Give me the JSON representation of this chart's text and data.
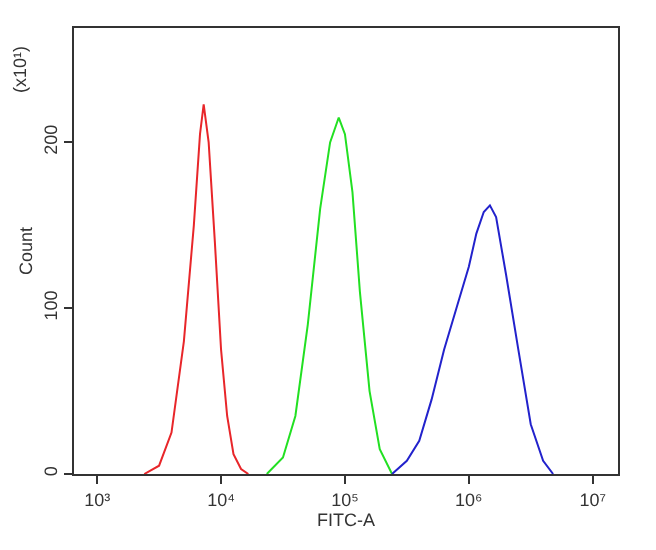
{
  "chart_data": {
    "type": "line",
    "xlabel": "FITC-A",
    "ylabel": "Count",
    "annotations": [
      "(x10¹)"
    ],
    "log": "x",
    "xlim": [
      650,
      16000000
    ],
    "xticks": [
      {
        "value": 1000,
        "label": "10³"
      },
      {
        "value": 10000,
        "label": "10⁴"
      },
      {
        "value": 100000,
        "label": "10⁵"
      },
      {
        "value": 1000000,
        "label": "10⁶"
      },
      {
        "value": 10000000,
        "label": "10⁷"
      }
    ],
    "ylim": [
      0,
      269
    ],
    "yticks": [
      0,
      100,
      200
    ],
    "marker": "none",
    "line_style": "solid",
    "series": [
      {
        "color": "#e8262a",
        "x": [
          2400,
          3160,
          3980,
          5010,
          6030,
          6760,
          7240,
          7940,
          8910,
          10000,
          11200,
          12600,
          14500,
          16600
        ],
        "values": [
          0,
          5,
          25,
          80,
          150,
          205,
          223,
          200,
          140,
          75,
          35,
          12,
          3,
          0
        ]
      },
      {
        "color": "#22e022",
        "x": [
          23400,
          31600,
          39800,
          50100,
          63100,
          75900,
          89100,
          100000,
          115000,
          132000,
          158000,
          191000,
          240000
        ],
        "values": [
          0,
          10,
          35,
          90,
          160,
          200,
          215,
          205,
          170,
          110,
          50,
          15,
          0
        ]
      },
      {
        "color": "#2222cc",
        "x": [
          240000,
          316000,
          398000,
          501000,
          631000,
          794000,
          1000000,
          1150000,
          1320000,
          1480000,
          1660000,
          2000000,
          2510000,
          3160000,
          3980000,
          4790000
        ],
        "values": [
          0,
          8,
          20,
          45,
          75,
          100,
          125,
          145,
          158,
          162,
          155,
          120,
          75,
          30,
          8,
          0
        ]
      }
    ]
  }
}
